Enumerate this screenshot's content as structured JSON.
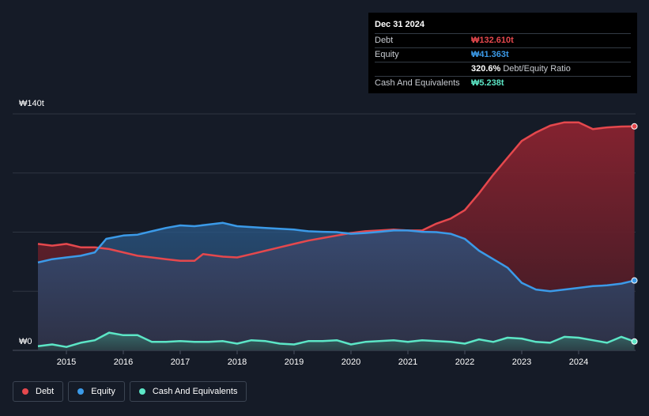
{
  "tooltip": {
    "date": "Dec 31 2024",
    "rows": [
      {
        "label": "Debt",
        "value": "₩132.610t",
        "color": "#e5484d"
      },
      {
        "label": "Equity",
        "value": "₩41.363t",
        "color": "#3b9ae8"
      },
      {
        "label": "",
        "value": "320.6%",
        "suffix": "Debt/Equity Ratio",
        "color": "#ffffff"
      },
      {
        "label": "Cash And Equivalents",
        "value": "₩5.238t",
        "color": "#5ce6c6"
      }
    ]
  },
  "legend": [
    {
      "label": "Debt",
      "color": "#e5484d"
    },
    {
      "label": "Equity",
      "color": "#3b9ae8"
    },
    {
      "label": "Cash And Equivalents",
      "color": "#5ce6c6"
    }
  ],
  "chart_data": {
    "type": "area",
    "y_tick_labels": [
      "₩140t",
      "₩0"
    ],
    "ylim": [
      0,
      140
    ],
    "xlim": [
      2014.5,
      2025.0
    ],
    "x_ticks": [
      2015,
      2016,
      2017,
      2018,
      2019,
      2020,
      2021,
      2022,
      2023,
      2024
    ],
    "grid": true,
    "legend_position": "bottom-left",
    "series": [
      {
        "name": "Debt",
        "color": "#e5484d",
        "points": [
          [
            2014.5,
            63
          ],
          [
            2014.75,
            62
          ],
          [
            2015.0,
            63
          ],
          [
            2015.25,
            61
          ],
          [
            2015.5,
            61
          ],
          [
            2015.75,
            60
          ],
          [
            2016.0,
            58
          ],
          [
            2016.25,
            56
          ],
          [
            2016.5,
            55
          ],
          [
            2016.75,
            54
          ],
          [
            2017.0,
            53
          ],
          [
            2017.25,
            53
          ],
          [
            2017.4,
            57
          ],
          [
            2017.75,
            55.5
          ],
          [
            2018.0,
            55
          ],
          [
            2018.25,
            57
          ],
          [
            2018.5,
            59
          ],
          [
            2018.75,
            61
          ],
          [
            2019.0,
            63
          ],
          [
            2019.25,
            65
          ],
          [
            2019.5,
            66.5
          ],
          [
            2019.75,
            68
          ],
          [
            2020.0,
            69.5
          ],
          [
            2020.25,
            70.5
          ],
          [
            2020.5,
            71
          ],
          [
            2020.75,
            71.5
          ],
          [
            2021.0,
            71
          ],
          [
            2021.25,
            71
          ],
          [
            2021.5,
            75
          ],
          [
            2021.75,
            78
          ],
          [
            2022.0,
            83
          ],
          [
            2022.25,
            93
          ],
          [
            2022.5,
            104
          ],
          [
            2022.75,
            114
          ],
          [
            2023.0,
            124
          ],
          [
            2023.25,
            129
          ],
          [
            2023.5,
            133
          ],
          [
            2023.75,
            135
          ],
          [
            2024.0,
            135
          ],
          [
            2024.25,
            131
          ],
          [
            2024.5,
            132
          ],
          [
            2024.75,
            132.5
          ],
          [
            2024.98,
            132.61
          ]
        ]
      },
      {
        "name": "Equity",
        "color": "#3b9ae8",
        "points": [
          [
            2014.5,
            52
          ],
          [
            2014.75,
            54
          ],
          [
            2015.0,
            55
          ],
          [
            2015.25,
            56
          ],
          [
            2015.5,
            58
          ],
          [
            2015.7,
            66
          ],
          [
            2016.0,
            68
          ],
          [
            2016.25,
            68.5
          ],
          [
            2016.5,
            70.5
          ],
          [
            2016.75,
            72.5
          ],
          [
            2017.0,
            74
          ],
          [
            2017.25,
            73.5
          ],
          [
            2017.5,
            74.5
          ],
          [
            2017.75,
            75.5
          ],
          [
            2018.0,
            73.5
          ],
          [
            2018.25,
            73
          ],
          [
            2018.5,
            72.5
          ],
          [
            2018.75,
            72
          ],
          [
            2019.0,
            71.5
          ],
          [
            2019.25,
            70.5
          ],
          [
            2019.5,
            70.2
          ],
          [
            2019.75,
            70
          ],
          [
            2020.0,
            69
          ],
          [
            2020.25,
            69.5
          ],
          [
            2020.5,
            70.2
          ],
          [
            2020.75,
            71
          ],
          [
            2021.0,
            71
          ],
          [
            2021.25,
            70.2
          ],
          [
            2021.5,
            70
          ],
          [
            2021.75,
            69
          ],
          [
            2022.0,
            66
          ],
          [
            2022.25,
            59
          ],
          [
            2022.5,
            54
          ],
          [
            2022.75,
            49
          ],
          [
            2023.0,
            40
          ],
          [
            2023.25,
            36
          ],
          [
            2023.5,
            35
          ],
          [
            2023.75,
            36
          ],
          [
            2024.0,
            37
          ],
          [
            2024.25,
            38
          ],
          [
            2024.5,
            38.5
          ],
          [
            2024.75,
            39.5
          ],
          [
            2024.98,
            41.36
          ]
        ]
      },
      {
        "name": "Cash And Equivalents",
        "color": "#5ce6c6",
        "points": [
          [
            2014.5,
            2.5
          ],
          [
            2014.75,
            3.5
          ],
          [
            2015.0,
            2.0
          ],
          [
            2015.25,
            4.5
          ],
          [
            2015.5,
            6
          ],
          [
            2015.75,
            10.5
          ],
          [
            2016.0,
            9
          ],
          [
            2016.25,
            9
          ],
          [
            2016.5,
            5
          ],
          [
            2016.75,
            5
          ],
          [
            2017.0,
            5.5
          ],
          [
            2017.25,
            5
          ],
          [
            2017.5,
            5
          ],
          [
            2017.75,
            5.5
          ],
          [
            2018.0,
            4
          ],
          [
            2018.25,
            6
          ],
          [
            2018.5,
            5.5
          ],
          [
            2018.75,
            4
          ],
          [
            2019.0,
            3.5
          ],
          [
            2019.25,
            5.5
          ],
          [
            2019.5,
            5.5
          ],
          [
            2019.75,
            6
          ],
          [
            2020.0,
            3.5
          ],
          [
            2020.25,
            5
          ],
          [
            2020.5,
            5.5
          ],
          [
            2020.75,
            6
          ],
          [
            2021.0,
            5
          ],
          [
            2021.25,
            6
          ],
          [
            2021.5,
            5.5
          ],
          [
            2021.75,
            5
          ],
          [
            2022.0,
            4
          ],
          [
            2022.25,
            6.5
          ],
          [
            2022.5,
            5
          ],
          [
            2022.75,
            7.5
          ],
          [
            2023.0,
            7
          ],
          [
            2023.25,
            5
          ],
          [
            2023.5,
            4.5
          ],
          [
            2023.75,
            8
          ],
          [
            2024.0,
            7.5
          ],
          [
            2024.25,
            6
          ],
          [
            2024.5,
            4.5
          ],
          [
            2024.75,
            8
          ],
          [
            2024.98,
            5.24
          ]
        ]
      }
    ]
  }
}
